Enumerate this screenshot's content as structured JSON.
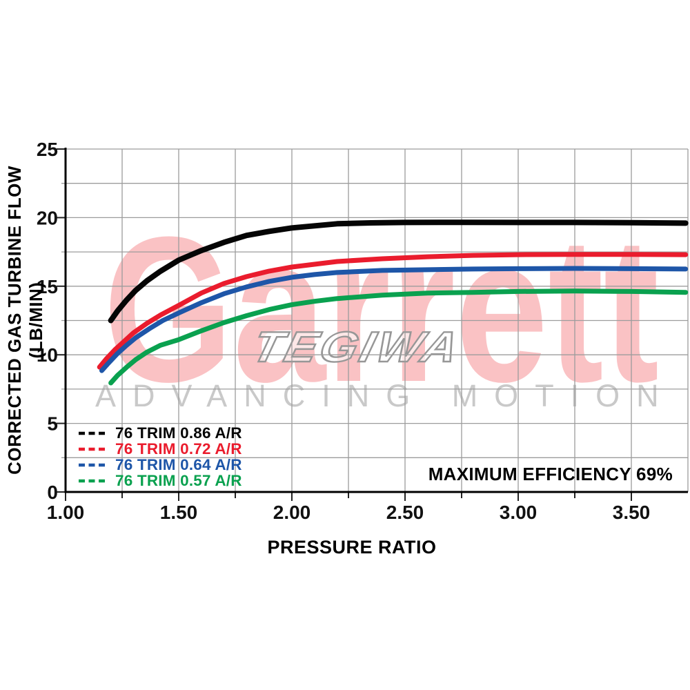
{
  "watermarks": {
    "brand": "Garrett",
    "brand_color": "rgba(237,28,36,0.27)",
    "tagline": "ADVANCING MOTION",
    "tagline_color": "#c9c9c9",
    "overlay": "TEGIWA",
    "overlay_stroke": "#979797",
    "overlay_fill": "rgba(255,255,255,0.6)"
  },
  "colors": {
    "grid": "#9c9c9c",
    "axis": "#000000",
    "tick": "#222222"
  },
  "chart_data": {
    "type": "line",
    "title": "",
    "xlabel": "PRESSURE RATIO",
    "ylabel": "CORRECTED GAS TURBINE FLOW (LB/MIN)",
    "xlim": [
      1.0,
      3.75
    ],
    "ylim": [
      0,
      25
    ],
    "x_minor_step": 0.25,
    "y_minor_step": 2.5,
    "grid": true,
    "legend_position": "lower-left",
    "annotation": "MAXIMUM EFFICIENCY 69%",
    "x_ticks": [
      {
        "v": 1.0,
        "label": "1.00"
      },
      {
        "v": 1.5,
        "label": "1.50"
      },
      {
        "v": 2.0,
        "label": "2.00"
      },
      {
        "v": 2.5,
        "label": "2.50"
      },
      {
        "v": 3.0,
        "label": "3.00"
      },
      {
        "v": 3.5,
        "label": "3.50"
      }
    ],
    "y_ticks": [
      {
        "v": 0,
        "label": "0"
      },
      {
        "v": 5,
        "label": "5"
      },
      {
        "v": 10,
        "label": "10"
      },
      {
        "v": 15,
        "label": "15"
      },
      {
        "v": 20,
        "label": "20"
      },
      {
        "v": 25,
        "label": "25"
      }
    ],
    "series": [
      {
        "name": "76 TRIM 0.86 A/R",
        "color": "#050505",
        "points": [
          [
            1.2,
            12.5
          ],
          [
            1.23,
            13.2
          ],
          [
            1.27,
            14.0
          ],
          [
            1.31,
            14.7
          ],
          [
            1.36,
            15.4
          ],
          [
            1.42,
            16.1
          ],
          [
            1.5,
            16.9
          ],
          [
            1.6,
            17.6
          ],
          [
            1.7,
            18.2
          ],
          [
            1.8,
            18.7
          ],
          [
            1.9,
            19.0
          ],
          [
            2.0,
            19.25
          ],
          [
            2.1,
            19.4
          ],
          [
            2.2,
            19.55
          ],
          [
            2.35,
            19.62
          ],
          [
            2.5,
            19.65
          ],
          [
            2.75,
            19.66
          ],
          [
            3.0,
            19.65
          ],
          [
            3.25,
            19.65
          ],
          [
            3.5,
            19.63
          ],
          [
            3.74,
            19.6
          ]
        ]
      },
      {
        "name": "76 TRIM 0.72 A/R",
        "color": "#ea1c2d",
        "points": [
          [
            1.15,
            9.1
          ],
          [
            1.18,
            9.7
          ],
          [
            1.22,
            10.4
          ],
          [
            1.26,
            11.0
          ],
          [
            1.3,
            11.6
          ],
          [
            1.36,
            12.3
          ],
          [
            1.42,
            12.9
          ],
          [
            1.5,
            13.6
          ],
          [
            1.6,
            14.5
          ],
          [
            1.7,
            15.2
          ],
          [
            1.8,
            15.7
          ],
          [
            1.9,
            16.1
          ],
          [
            2.0,
            16.4
          ],
          [
            2.1,
            16.6
          ],
          [
            2.2,
            16.8
          ],
          [
            2.4,
            17.0
          ],
          [
            2.6,
            17.15
          ],
          [
            2.8,
            17.25
          ],
          [
            3.0,
            17.3
          ],
          [
            3.25,
            17.32
          ],
          [
            3.5,
            17.32
          ],
          [
            3.74,
            17.3
          ]
        ]
      },
      {
        "name": "76 TRIM 0.64 A/R",
        "color": "#1e56a8",
        "points": [
          [
            1.16,
            8.85
          ],
          [
            1.19,
            9.4
          ],
          [
            1.23,
            10.1
          ],
          [
            1.27,
            10.7
          ],
          [
            1.31,
            11.25
          ],
          [
            1.37,
            11.9
          ],
          [
            1.43,
            12.5
          ],
          [
            1.5,
            13.05
          ],
          [
            1.6,
            13.8
          ],
          [
            1.7,
            14.45
          ],
          [
            1.8,
            14.95
          ],
          [
            1.9,
            15.35
          ],
          [
            2.0,
            15.65
          ],
          [
            2.1,
            15.85
          ],
          [
            2.2,
            16.0
          ],
          [
            2.4,
            16.15
          ],
          [
            2.6,
            16.2
          ],
          [
            2.8,
            16.25
          ],
          [
            3.0,
            16.28
          ],
          [
            3.25,
            16.3
          ],
          [
            3.5,
            16.28
          ],
          [
            3.74,
            16.25
          ]
        ]
      },
      {
        "name": "76 TRIM 0.57 A/R",
        "color": "#0aa14f",
        "points": [
          [
            1.2,
            7.95
          ],
          [
            1.23,
            8.5
          ],
          [
            1.27,
            9.1
          ],
          [
            1.31,
            9.65
          ],
          [
            1.36,
            10.2
          ],
          [
            1.42,
            10.7
          ],
          [
            1.5,
            11.1
          ],
          [
            1.6,
            11.75
          ],
          [
            1.7,
            12.35
          ],
          [
            1.8,
            12.85
          ],
          [
            1.9,
            13.3
          ],
          [
            2.0,
            13.65
          ],
          [
            2.1,
            13.9
          ],
          [
            2.2,
            14.1
          ],
          [
            2.4,
            14.35
          ],
          [
            2.6,
            14.5
          ],
          [
            2.8,
            14.55
          ],
          [
            3.0,
            14.62
          ],
          [
            3.25,
            14.65
          ],
          [
            3.5,
            14.62
          ],
          [
            3.74,
            14.55
          ]
        ]
      }
    ]
  }
}
